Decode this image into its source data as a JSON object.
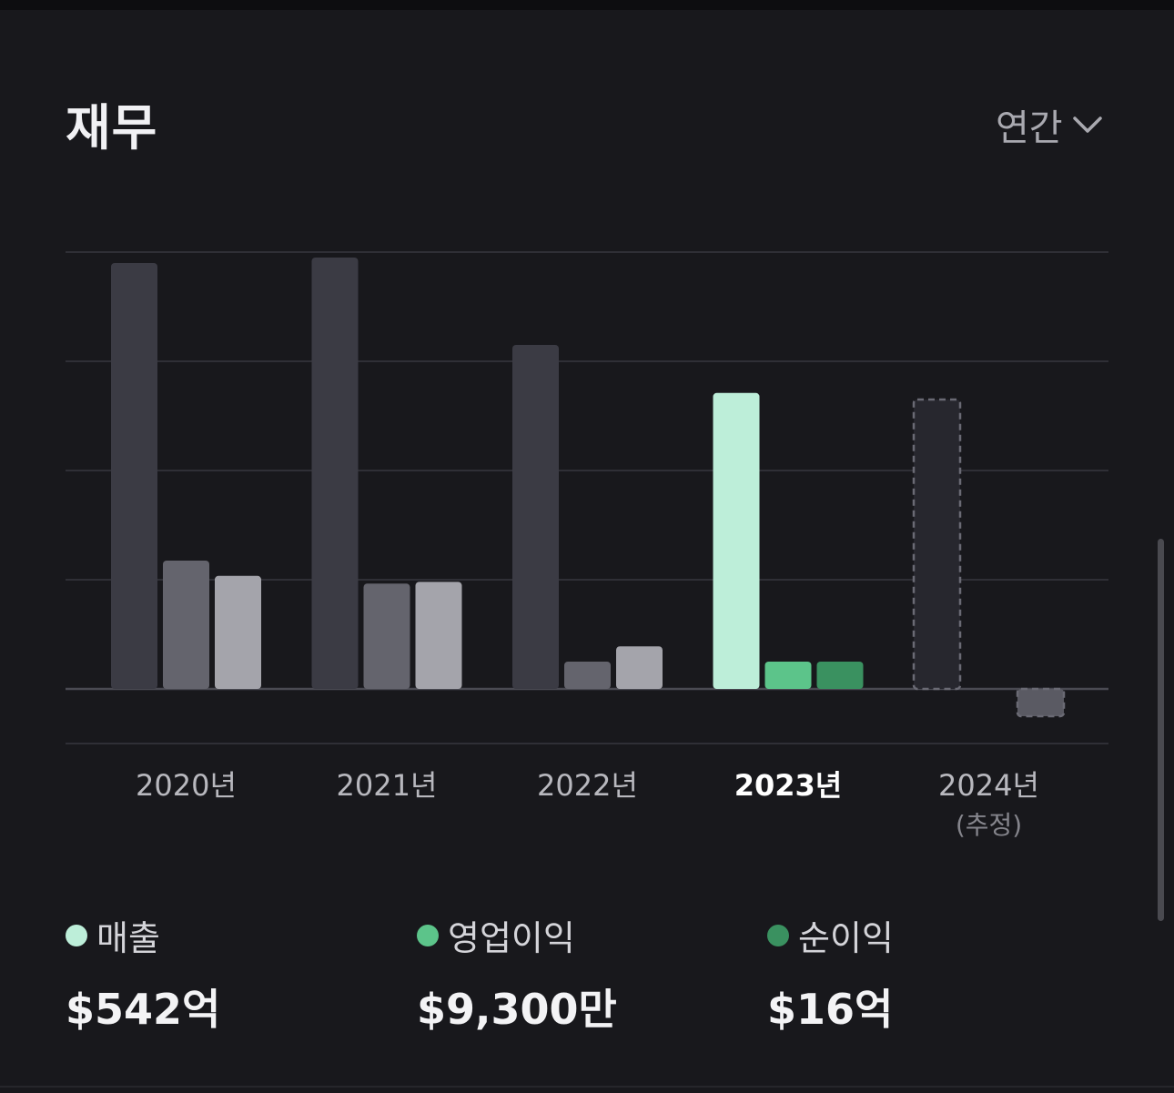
{
  "header": {
    "title": "재무",
    "period": "연간",
    "period_icon": "chevron-down-icon"
  },
  "chart_data": {
    "type": "bar",
    "categories": [
      "2020년",
      "2021년",
      "2022년",
      "2023년",
      "2024년"
    ],
    "category_notes": [
      "",
      "",
      "",
      "",
      "(추정)"
    ],
    "highlight_index": 3,
    "estimated_index": 4,
    "series": [
      {
        "name": "매출",
        "values": [
          780,
          790,
          630,
          542,
          530
        ]
      },
      {
        "name": "영업이익",
        "values": [
          235,
          193,
          48,
          0.93,
          null
        ]
      },
      {
        "name": "순이익",
        "values": [
          207,
          196,
          78,
          16,
          -50
        ]
      }
    ],
    "ylim": [
      -100,
      800
    ],
    "grid": true,
    "colors": {
      "highlight": [
        "#bdeed9",
        "#5cc48a",
        "#3a9160"
      ],
      "normal": [
        "#3b3b44",
        "#64646d",
        "#a4a4ab"
      ],
      "estimated": [
        "#27272e",
        "#27272e",
        "#5a5a63"
      ]
    }
  },
  "legend": [
    {
      "name": "매출",
      "value": "$542억",
      "color": "#bdeed9"
    },
    {
      "name": "영업이익",
      "value": "$9,300만",
      "color": "#5cc48a"
    },
    {
      "name": "순이익",
      "value": "$16억",
      "color": "#3a9160"
    }
  ]
}
